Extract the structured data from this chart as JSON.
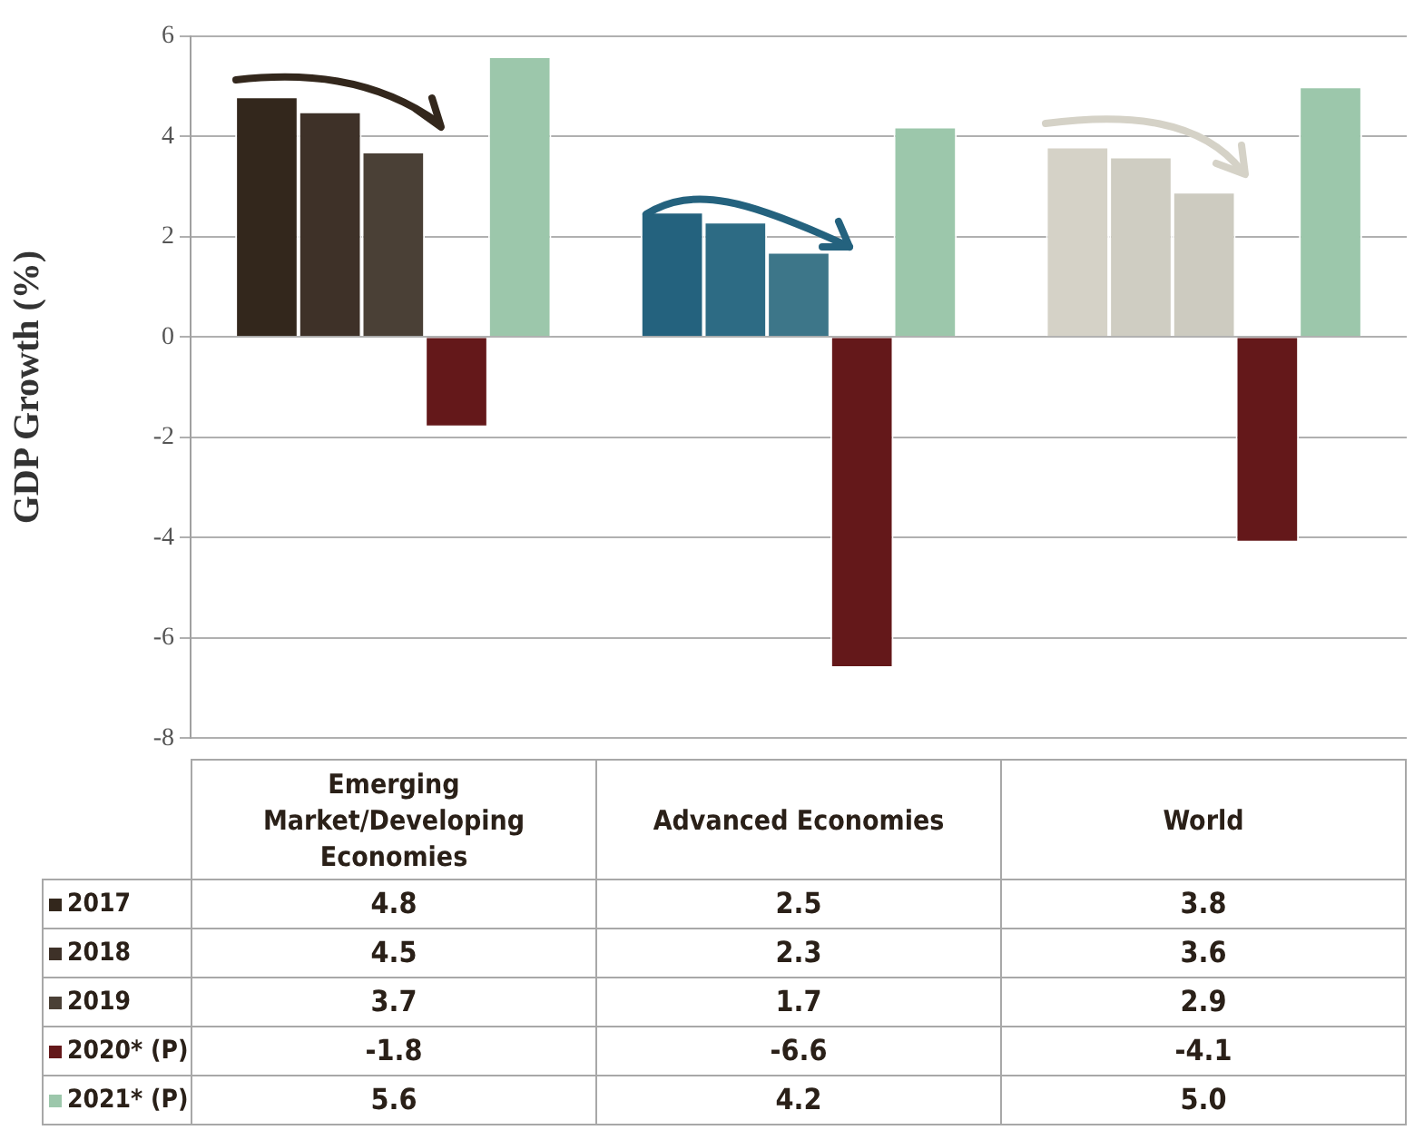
{
  "chart_data": {
    "type": "bar",
    "ylabel": "GDP Growth (%)",
    "categories": [
      "Emerging Market/Developing Economies",
      "Advanced Economies",
      "World"
    ],
    "series": [
      {
        "name": "2017",
        "colors": [
          "#33271c",
          "#24627e",
          "#d5d2c7"
        ],
        "values": [
          4.8,
          2.5,
          3.8
        ],
        "value_labels": [
          "4.8",
          "2.5",
          "3.8"
        ]
      },
      {
        "name": "2018",
        "colors": [
          "#3e3128",
          "#2d6b84",
          "#cfcdc2"
        ],
        "values": [
          4.5,
          2.3,
          3.6
        ],
        "value_labels": [
          "4.5",
          "2.3",
          "3.6"
        ]
      },
      {
        "name": "2019",
        "colors": [
          "#4a4036",
          "#3d7689",
          "#cdcbc0"
        ],
        "values": [
          3.7,
          1.7,
          2.9
        ],
        "value_labels": [
          "3.7",
          "1.7",
          "2.9"
        ]
      },
      {
        "name": "2020* (P)",
        "color": "#64181a",
        "values": [
          -1.8,
          -6.6,
          -4.1
        ],
        "value_labels": [
          "-1.8",
          "-6.6",
          "-4.1"
        ]
      },
      {
        "name": "2021* (P)",
        "color": "#9cc7ab",
        "values": [
          5.6,
          4.2,
          5.0
        ],
        "value_labels": [
          "5.6",
          "4.2",
          "5.0"
        ]
      }
    ],
    "ylim": [
      -8,
      6
    ],
    "yticks": [
      -8,
      -6,
      -4,
      -2,
      0,
      2,
      4,
      6
    ],
    "grid": "y",
    "legend": "bottom"
  }
}
